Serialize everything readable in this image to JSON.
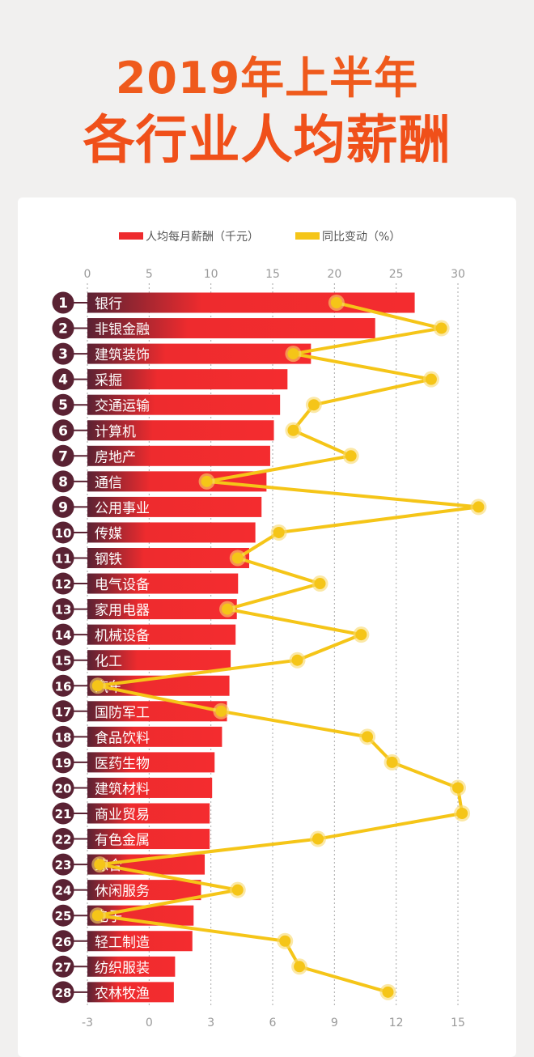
{
  "title": {
    "line1": "2019年上半年",
    "line2": "各行业人均薪酬"
  },
  "colors": {
    "salary": "#ee2b2e",
    "salary_dark": "#5a2233",
    "change": "#f5c518",
    "title": "#ef5a1c"
  },
  "chart_data": {
    "type": "bar+line",
    "legend": {
      "placement": "top",
      "entries": [
        "人均每月薪酬（千元）",
        "同比变动（%）"
      ]
    },
    "categories": [
      "银行",
      "非银金融",
      "建筑装饰",
      "采掘",
      "交通运输",
      "计算机",
      "房地产",
      "通信",
      "公用事业",
      "传媒",
      "钢铁",
      "电气设备",
      "家用电器",
      "机械设备",
      "化工",
      "汽车",
      "国防军工",
      "食品饮料",
      "医药生物",
      "建筑材料",
      "商业贸易",
      "有色金属",
      "综合",
      "休闲服务",
      "电子",
      "轻工制造",
      "纺织服装",
      "农林牧渔"
    ],
    "ranks": [
      "1",
      "2",
      "3",
      "4",
      "5",
      "6",
      "7",
      "8",
      "9",
      "10",
      "11",
      "12",
      "13",
      "14",
      "15",
      "16",
      "17",
      "18",
      "19",
      "20",
      "21",
      "22",
      "23",
      "24",
      "25",
      "26",
      "27",
      "28"
    ],
    "series": [
      {
        "name": "人均每月薪酬（千元）",
        "type": "bar",
        "axis": "top",
        "values": [
          26.5,
          23.3,
          18.1,
          16.2,
          15.6,
          15.1,
          14.8,
          14.5,
          14.1,
          13.6,
          13.1,
          12.2,
          12.1,
          12.0,
          11.6,
          11.5,
          11.3,
          10.9,
          10.3,
          10.1,
          9.9,
          9.9,
          9.5,
          9.2,
          8.6,
          8.5,
          7.1,
          7.0
        ]
      },
      {
        "name": "同比变动（%）",
        "type": "line",
        "axis": "bottom",
        "values": [
          9.1,
          14.2,
          7.0,
          13.7,
          8.0,
          7.0,
          9.8,
          2.8,
          16.0,
          6.3,
          4.3,
          8.3,
          3.8,
          10.3,
          7.2,
          -2.5,
          3.5,
          10.6,
          11.8,
          15.0,
          15.2,
          8.2,
          -2.4,
          4.3,
          -2.5,
          6.6,
          7.3,
          11.6
        ]
      }
    ],
    "top_axis": {
      "range": [
        0,
        30
      ],
      "ticks": [
        "0",
        "5",
        "10",
        "15",
        "20",
        "25",
        "30"
      ]
    },
    "bottom_axis": {
      "range": [
        -3,
        15
      ],
      "ticks": [
        "-3",
        "0",
        "3",
        "6",
        "9",
        "12",
        "15"
      ]
    },
    "grid": "vertical dashed"
  }
}
